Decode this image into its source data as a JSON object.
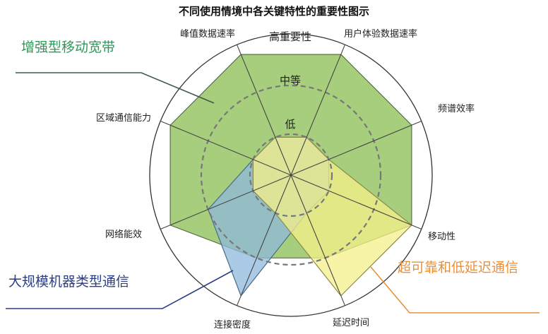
{
  "title": "不同使用情境中各关键特性的重要性图示",
  "axes": [
    "峰值数据速率",
    "用户体验数据速率",
    "频谱效率",
    "移动性",
    "延迟时间",
    "连接密度",
    "网络能效",
    "区域通信能力"
  ],
  "levels": [
    "高重要性",
    "中等",
    "低"
  ],
  "scenarios": [
    {
      "name": "增强型移动宽带",
      "label_color": "#2e9a5a",
      "line_color": "#3f5a4a",
      "fill": "#9cc96e",
      "stroke": "#5a6f4a",
      "values": {
        "峰值数据速率": "高重要性",
        "用户体验数据速率": "高重要性",
        "频谱效率": "高重要性",
        "移动性": "高重要性",
        "延迟时间": "中等",
        "连接密度": "中等",
        "网络能效": "高重要性",
        "区域通信能力": "高重要性"
      }
    },
    {
      "name": "大规模机器类型通信",
      "label_color": "#2c3f86",
      "line_color": "#2c3f86",
      "fill": "#8fb8dc",
      "stroke": "#4a6a8a",
      "values": {
        "峰值数据速率": "低",
        "用户体验数据速率": "低",
        "频谱效率": "低",
        "移动性": "低",
        "延迟时间": "低",
        "连接密度": "高重要性",
        "网络能效": "中等",
        "区域通信能力": "低"
      }
    },
    {
      "name": "超可靠和低延迟通信",
      "label_color": "#e8903a",
      "line_color": "#e8903a",
      "fill": "#f6f08a",
      "stroke": "#8a8a4a",
      "values": {
        "峰值数据速率": "低",
        "用户体验数据速率": "低",
        "频谱效率": "低",
        "移动性": "高重要性",
        "延迟时间": "高重要性",
        "连接密度": "低",
        "网络能效": "低",
        "区域通信能力": "低"
      }
    }
  ]
}
